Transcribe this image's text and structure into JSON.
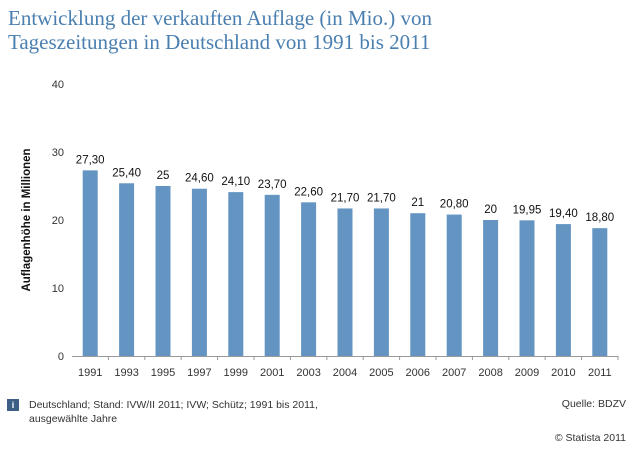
{
  "title": {
    "line1": "Entwicklung der verkauften Auflage (in Mio.) von",
    "line2": "Tageszeitungen in Deutschland von 1991 bis 2011"
  },
  "footer": {
    "info_icon": "info-icon",
    "source_text": "Deutschland; Stand: IVW/II 2011; IVW; Schütz; 1991 bis 2011, ausgewählte Jahre",
    "source_label": "Quelle: BDZV",
    "copyright": "© Statista 2011"
  },
  "chart_data": {
    "type": "bar",
    "title": "Entwicklung der verkauften Auflage (in Mio.) von Tageszeitungen in Deutschland von 1991 bis 2011",
    "xlabel": "",
    "ylabel": "Auflagenhöhe in Millionen",
    "ylim": [
      0,
      40
    ],
    "yticks": [
      0,
      10,
      20,
      30,
      40
    ],
    "grid": false,
    "bar_color": "#6495c2",
    "categories": [
      "1991",
      "1993",
      "1995",
      "1997",
      "1999",
      "2001",
      "2003",
      "2004",
      "2005",
      "2006",
      "2007",
      "2008",
      "2009",
      "2010",
      "2011"
    ],
    "values": [
      27.3,
      25.4,
      25,
      24.6,
      24.1,
      23.7,
      22.6,
      21.7,
      21.7,
      21,
      20.8,
      20,
      19.95,
      19.4,
      18.8
    ],
    "value_labels": [
      "27,30",
      "25,40",
      "25",
      "24,60",
      "24,10",
      "23,70",
      "22,60",
      "21,70",
      "21,70",
      "21",
      "20,80",
      "20",
      "19,95",
      "19,40",
      "18,80"
    ]
  }
}
